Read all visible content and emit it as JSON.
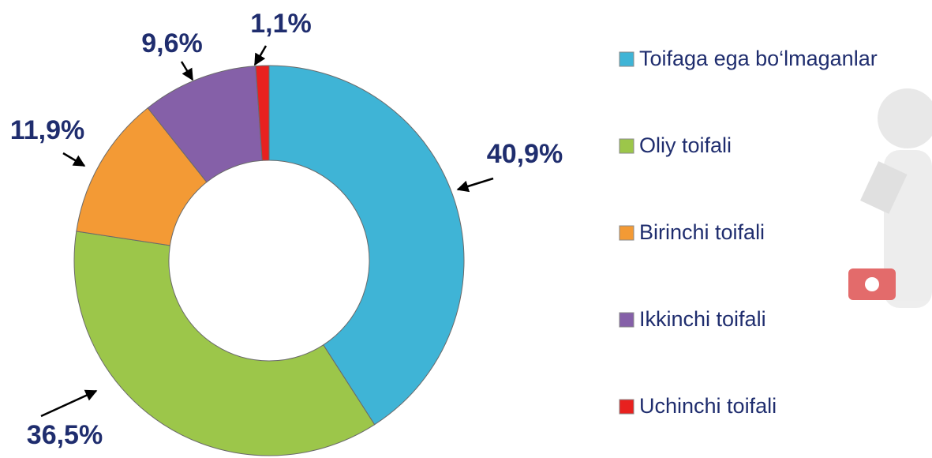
{
  "chart_data": {
    "type": "pie",
    "donut": true,
    "categories": [
      "Toifaga ega bo‘lmaganlar",
      "Oliy toifali",
      "Birinchi toifali",
      "Ikkinchi toifali",
      "Uchinchi toifali"
    ],
    "values": [
      40.9,
      36.5,
      11.9,
      9.6,
      1.1
    ],
    "value_labels": [
      "40,9%",
      "36,5%",
      "11,9%",
      "9,6%",
      "1,1%"
    ],
    "colors": [
      "#3fb4d6",
      "#9cc64a",
      "#f39a35",
      "#8560a8",
      "#e8211f"
    ]
  }
}
